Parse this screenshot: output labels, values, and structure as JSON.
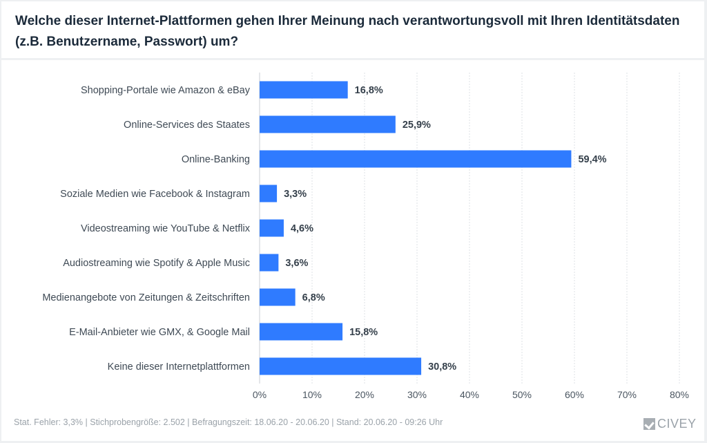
{
  "header": {
    "title": "Welche dieser Internet-Plattformen gehen Ihrer Meinung nach verantwortungsvoll mit Ihren Identitätsdaten (z.B. Benutzername, Passwort) um?"
  },
  "footer": {
    "meta": "Stat. Fehler: 3,3% | Stichprobengröße: 2.502 | Befragungszeit: 18.06.20 - 20.06.20 | Stand: 20.06.20 - 09:26 Uhr",
    "brand": "CIVEY",
    "brand_icon": "civey-checkmark-logo"
  },
  "colors": {
    "bar": "#2f7bff",
    "label": "#3f4a55",
    "value_label": "#35404b",
    "grid": "#dde1e5",
    "title": "#1b2a3a"
  },
  "chart_data": {
    "type": "bar",
    "orientation": "horizontal",
    "title": "Welche dieser Internet-Plattformen gehen Ihrer Meinung nach verantwortungsvoll mit Ihren Identitätsdaten (z.B. Benutzername, Passwort) um?",
    "xlabel": "",
    "ylabel": "",
    "categories": [
      "Shopping-Portale wie Amazon & eBay",
      "Online-Services des Staates",
      "Online-Banking",
      "Soziale Medien wie Facebook & Instagram",
      "Videostreaming wie YouTube & Netflix",
      "Audiostreaming wie Spotify & Apple Music",
      "Medienangebote von Zeitungen & Zeitschriften",
      "E-Mail-Anbieter wie GMX, & Google Mail",
      "Keine dieser Internetplattformen"
    ],
    "values": [
      16.8,
      25.9,
      59.4,
      3.3,
      4.6,
      3.6,
      6.8,
      15.8,
      30.8
    ],
    "value_labels": [
      "16,8%",
      "25,9%",
      "59,4%",
      "3,3%",
      "4,6%",
      "3,6%",
      "6,8%",
      "15,8%",
      "30,8%"
    ],
    "xlim": [
      0,
      80
    ],
    "xticks": [
      0,
      10,
      20,
      30,
      40,
      50,
      60,
      70,
      80
    ],
    "xtick_labels": [
      "0%",
      "10%",
      "20%",
      "30%",
      "40%",
      "50%",
      "60%",
      "70%",
      "80%"
    ],
    "grid": true,
    "legend": "none"
  }
}
